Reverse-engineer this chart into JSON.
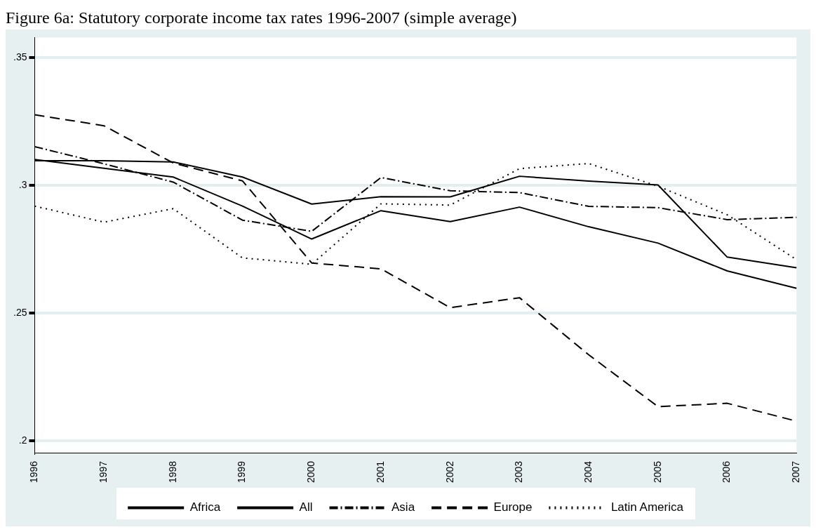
{
  "chart_data": {
    "type": "line",
    "title": "Figure 6a: Statutory corporate income tax rates 1996-2007  (simple average)",
    "categories": [
      "1996",
      "1997",
      "1998",
      "1999",
      "2000",
      "2001",
      "2002",
      "2003",
      "2004",
      "2005",
      "2006",
      "2007"
    ],
    "series": [
      {
        "name": "Africa",
        "color": "#000000",
        "line_style": "solid",
        "values": [
          0.3097,
          0.3097,
          0.3092,
          0.3033,
          0.2927,
          0.2956,
          0.2955,
          0.3036,
          0.3017,
          0.3002,
          0.2719,
          0.2677
        ]
      },
      {
        "name": "All",
        "color": "#000000",
        "line_style": "solid",
        "values": [
          0.3102,
          0.3067,
          0.3033,
          0.2919,
          0.279,
          0.2901,
          0.2858,
          0.2915,
          0.2838,
          0.2774,
          0.2665,
          0.2597
        ]
      },
      {
        "name": "Asia",
        "color": "#000000",
        "line_style": "dashdot",
        "values": [
          0.3152,
          0.3085,
          0.3013,
          0.2864,
          0.282,
          0.3031,
          0.2979,
          0.2972,
          0.2918,
          0.2913,
          0.2866,
          0.2875
        ]
      },
      {
        "name": "Europe",
        "color": "#000000",
        "line_style": "dashed",
        "values": [
          0.3277,
          0.3234,
          0.3088,
          0.3018,
          0.2696,
          0.2673,
          0.2521,
          0.256,
          0.2336,
          0.2133,
          0.2146,
          0.2076
        ]
      },
      {
        "name": "Latin America",
        "color": "#000000",
        "line_style": "dotted",
        "values": [
          0.2919,
          0.2856,
          0.2909,
          0.2716,
          0.2691,
          0.2928,
          0.2923,
          0.3066,
          0.3086,
          0.2997,
          0.2885,
          0.2709
        ]
      }
    ],
    "ylim": [
      0.195,
      0.358
    ],
    "yticks": [
      {
        "value": 0.2,
        "label": ".2"
      },
      {
        "value": 0.25,
        "label": ".25"
      },
      {
        "value": 0.3,
        "label": ".3"
      },
      {
        "value": 0.35,
        "label": ".35"
      }
    ],
    "grid": "y",
    "legend": "bottom",
    "marker": "none"
  }
}
